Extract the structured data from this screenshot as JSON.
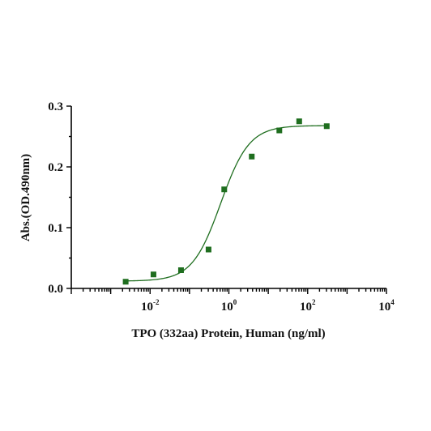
{
  "chart_data": {
    "type": "scatter",
    "title": "",
    "xlabel": "TPO (332aa) Protein, Human (ng/ml)",
    "ylabel": "Abs.(OD.490nm)",
    "x_scale": "log10",
    "xlim": [
      0.0001,
      10000
    ],
    "ylim": [
      0,
      0.3
    ],
    "x_ticks": [
      {
        "base": "10",
        "exp": "-2"
      },
      {
        "base": "10",
        "exp": "0"
      },
      {
        "base": "10",
        "exp": "2"
      },
      {
        "base": "10",
        "exp": "4"
      }
    ],
    "y_ticks": [
      "0.0",
      "0.1",
      "0.2",
      "0.3"
    ],
    "grid": false,
    "legend": "none",
    "color": "#1f6e1f",
    "series": [
      {
        "x": [
          0.0024,
          0.0122,
          0.061,
          0.305,
          0.763,
          3.81,
          19.1,
          61,
          305
        ],
        "y": [
          0.011,
          0.023,
          0.03,
          0.064,
          0.163,
          0.217,
          0.26,
          0.275,
          0.267
        ]
      }
    ],
    "fit_curve": {
      "model": "4PL",
      "bottom": 0.012,
      "top": 0.268,
      "ec50": 0.62,
      "hill": 1.2,
      "x_range": [
        0.0024,
        305
      ]
    }
  }
}
